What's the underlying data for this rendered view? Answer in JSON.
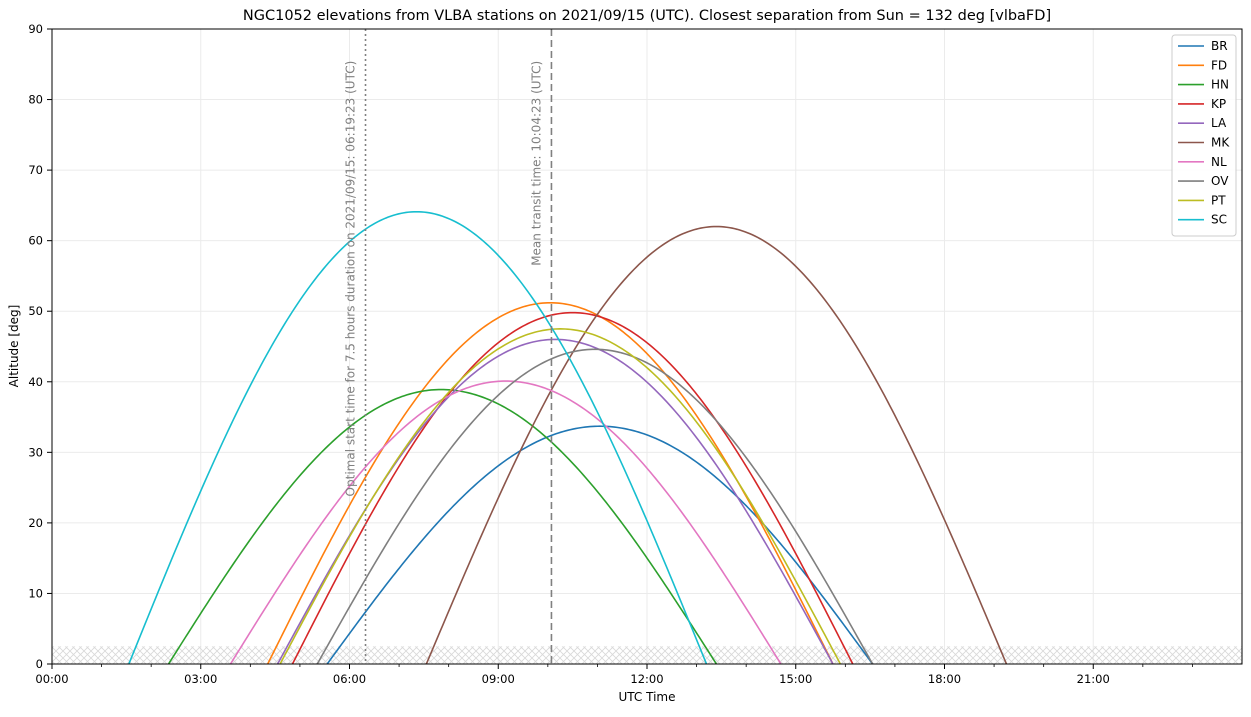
{
  "chart_data": {
    "type": "line",
    "title": "NGC1052 elevations from VLBA stations on 2021/09/15 (UTC). Closest separation from Sun = 132 deg [vlbaFD]",
    "xlabel": "UTC Time",
    "ylabel": "Altitude [deg]",
    "xlim": [
      0,
      24
    ],
    "ylim": [
      0,
      90
    ],
    "x_unit": "hours",
    "x_ticks": [
      0,
      3,
      6,
      9,
      12,
      15,
      18,
      21
    ],
    "x_tick_labels": [
      "00:00",
      "03:00",
      "06:00",
      "09:00",
      "12:00",
      "15:00",
      "18:00",
      "21:00"
    ],
    "y_ticks": [
      0,
      10,
      20,
      30,
      40,
      50,
      60,
      70,
      80,
      90
    ],
    "y_tick_labels": [
      "0",
      "10",
      "20",
      "30",
      "40",
      "50",
      "60",
      "70",
      "80",
      "90"
    ],
    "grid": true,
    "legend_position": "top-right",
    "horizon_band": [
      0,
      2.5
    ],
    "series": [
      {
        "name": "BR",
        "color": "#1f77b4",
        "peak_time": 11.05,
        "peak_alt": 33.7,
        "rise": 5.55,
        "set": 16.55
      },
      {
        "name": "FD",
        "color": "#ff7f0e",
        "peak_time": 10.05,
        "peak_alt": 51.2,
        "rise": 4.35,
        "set": 15.75
      },
      {
        "name": "HN",
        "color": "#2ca02c",
        "peak_time": 7.85,
        "peak_alt": 38.9,
        "rise": 2.35,
        "set": 13.4
      },
      {
        "name": "KP",
        "color": "#d62728",
        "peak_time": 10.5,
        "peak_alt": 49.8,
        "rise": 4.85,
        "set": 16.15
      },
      {
        "name": "LA",
        "color": "#9467bd",
        "peak_time": 10.15,
        "peak_alt": 46.0,
        "rise": 4.55,
        "set": 15.75
      },
      {
        "name": "MK",
        "color": "#8c564b",
        "peak_time": 13.4,
        "peak_alt": 62.0,
        "rise": 7.55,
        "set": 19.25
      },
      {
        "name": "NL",
        "color": "#e377c2",
        "peak_time": 9.15,
        "peak_alt": 40.1,
        "rise": 3.6,
        "set": 14.7
      },
      {
        "name": "OV",
        "color": "#7f7f7f",
        "peak_time": 10.95,
        "peak_alt": 44.6,
        "rise": 5.35,
        "set": 16.55
      },
      {
        "name": "PT",
        "color": "#bcbd22",
        "peak_time": 10.25,
        "peak_alt": 47.5,
        "rise": 4.6,
        "set": 15.9
      },
      {
        "name": "SC",
        "color": "#17becf",
        "peak_time": 7.35,
        "peak_alt": 64.1,
        "rise": 1.55,
        "set": 13.2
      }
    ],
    "vlines": [
      {
        "x": 6.323,
        "style": "dotted",
        "color": "#808080",
        "label": "Optimal start time for 7.5 hours duration on 2021/09/15: 06:19:23 (UTC)",
        "label_top": 85.5
      },
      {
        "x": 10.073,
        "style": "dashed",
        "color": "#808080",
        "label": "Mean transit time: 10:04:23 (UTC)",
        "label_top": 85.5
      }
    ]
  }
}
